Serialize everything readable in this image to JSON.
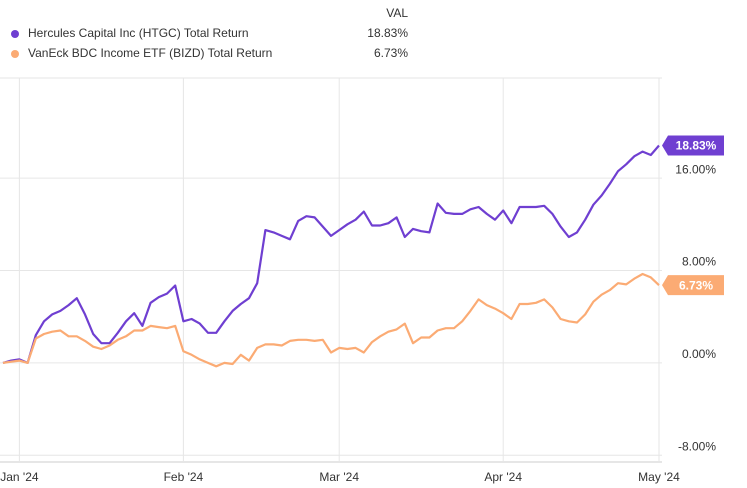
{
  "chart_data": {
    "type": "line",
    "legend_header": "VAL",
    "categories": [
      null,
      null,
      "Jan '24",
      null,
      null,
      null,
      null,
      null,
      null,
      null,
      null,
      null,
      null,
      null,
      null,
      null,
      null,
      null,
      null,
      null,
      null,
      null,
      "Feb '24",
      null,
      null,
      null,
      null,
      null,
      null,
      null,
      null,
      null,
      null,
      null,
      null,
      null,
      null,
      null,
      null,
      null,
      null,
      "Mar '24",
      null,
      null,
      null,
      null,
      null,
      null,
      null,
      null,
      null,
      null,
      null,
      null,
      null,
      null,
      null,
      null,
      null,
      null,
      null,
      "Apr '24",
      null,
      null,
      null,
      null,
      null,
      null,
      null,
      null,
      null,
      null,
      null,
      null,
      null,
      null,
      null,
      null,
      null,
      null,
      "May '24"
    ],
    "series": [
      {
        "name": "Hercules Capital Inc (HTGC) Total Return",
        "color": "#6f3fd1",
        "values": [
          0.0,
          0.2,
          0.3,
          0.0,
          2.4,
          3.6,
          4.2,
          4.5,
          5.0,
          5.6,
          4.2,
          2.5,
          1.7,
          1.7,
          2.6,
          3.6,
          4.3,
          3.2,
          5.2,
          5.7,
          6.0,
          6.7,
          3.6,
          3.8,
          3.4,
          2.6,
          2.6,
          3.6,
          4.5,
          5.1,
          5.6,
          6.9,
          11.5,
          11.3,
          11.0,
          10.7,
          12.3,
          12.7,
          12.6,
          11.8,
          11.0,
          11.5,
          12.0,
          12.4,
          13.1,
          11.9,
          11.9,
          12.1,
          12.6,
          10.9,
          11.6,
          11.4,
          11.3,
          13.8,
          13.0,
          12.9,
          12.9,
          13.3,
          13.5,
          12.9,
          12.4,
          13.2,
          12.1,
          13.5,
          13.5,
          13.5,
          13.6,
          12.9,
          11.8,
          10.9,
          11.3,
          12.4,
          13.7,
          14.5,
          15.5,
          16.6,
          17.2,
          17.9,
          18.3,
          18.0,
          18.83
        ],
        "value_labels": [
          null,
          null,
          null,
          null,
          null,
          null,
          null,
          null,
          null,
          null,
          null,
          null,
          null,
          null,
          null,
          null,
          null,
          null,
          null,
          null,
          null,
          null,
          null,
          null,
          null,
          null,
          null,
          null,
          null,
          null,
          null,
          null,
          null,
          null,
          null,
          null,
          null,
          null,
          null,
          null,
          null,
          null,
          null,
          null,
          null,
          null,
          null,
          null,
          null,
          null,
          null,
          null,
          null,
          null,
          null,
          null,
          null,
          null,
          null,
          null,
          null,
          null,
          null,
          null,
          null,
          null,
          null,
          null,
          null,
          null,
          null,
          null,
          null,
          null,
          null,
          null,
          null,
          null,
          null,
          null,
          "18.83%"
        ]
      },
      {
        "name": "VanEck BDC Income ETF (BIZD) Total Return",
        "color": "#fbab74",
        "values": [
          0.0,
          0.1,
          0.2,
          0.0,
          2.1,
          2.5,
          2.7,
          2.8,
          2.3,
          2.3,
          1.9,
          1.4,
          1.2,
          1.5,
          2.0,
          2.3,
          2.8,
          2.8,
          3.2,
          3.1,
          3.0,
          3.2,
          1.0,
          0.7,
          0.3,
          0.0,
          -0.3,
          0.0,
          -0.1,
          0.7,
          0.2,
          1.3,
          1.6,
          1.6,
          1.5,
          1.9,
          2.0,
          2.0,
          1.9,
          2.0,
          0.9,
          1.3,
          1.2,
          1.3,
          0.9,
          1.8,
          2.3,
          2.7,
          2.9,
          3.4,
          1.7,
          2.2,
          2.2,
          2.8,
          3.0,
          3.0,
          3.6,
          4.5,
          5.5,
          5.0,
          4.7,
          4.3,
          3.8,
          5.1,
          5.1,
          5.2,
          5.5,
          4.8,
          3.8,
          3.6,
          3.5,
          4.2,
          5.3,
          5.9,
          6.3,
          6.9,
          6.8,
          7.3,
          7.7,
          7.4,
          6.73
        ],
        "value_labels": [
          null,
          null,
          null,
          null,
          null,
          null,
          null,
          null,
          null,
          null,
          null,
          null,
          null,
          null,
          null,
          null,
          null,
          null,
          null,
          null,
          null,
          null,
          null,
          null,
          null,
          null,
          null,
          null,
          null,
          null,
          null,
          null,
          null,
          null,
          null,
          null,
          null,
          null,
          null,
          null,
          null,
          null,
          null,
          null,
          null,
          null,
          null,
          null,
          null,
          null,
          null,
          null,
          null,
          null,
          null,
          null,
          null,
          null,
          null,
          null,
          null,
          null,
          null,
          null,
          null,
          null,
          null,
          null,
          null,
          null,
          null,
          null,
          null,
          null,
          null,
          null,
          null,
          null,
          null,
          null,
          "6.73%"
        ]
      }
    ],
    "ylim": [
      -8.5,
      24.5
    ],
    "yticks": [
      {
        "value": -8,
        "label": "-8.00%"
      },
      {
        "value": 0,
        "label": "0.00%"
      },
      {
        "value": 8,
        "label": "8.00%"
      },
      {
        "value": 16,
        "label": "16.00%"
      }
    ],
    "grid": true
  }
}
